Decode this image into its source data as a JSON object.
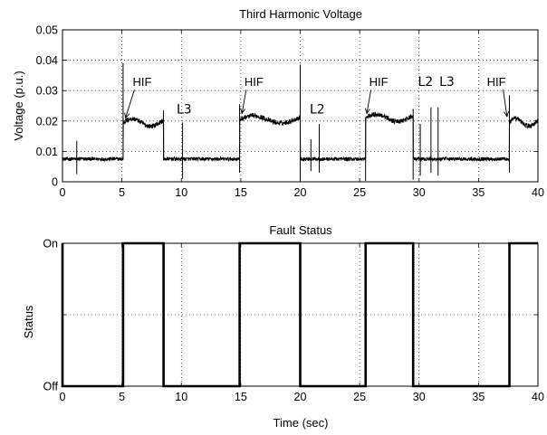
{
  "chart_data": [
    {
      "type": "line",
      "title": "Third Harmonic Voltage",
      "xlabel": "",
      "ylabel": "Voltage (p.u.)",
      "xlim": [
        0,
        40
      ],
      "ylim": [
        0,
        0.05
      ],
      "x_ticks": [
        "0",
        "5",
        "10",
        "15",
        "20",
        "25",
        "30",
        "35",
        "40"
      ],
      "y_ticks": [
        "0",
        "0.01",
        "0.02",
        "0.03",
        "0.04",
        "0.05"
      ],
      "grid": true,
      "segments": [
        {
          "x": [
            0,
            5.1
          ],
          "level": 0.0075,
          "state": "normal"
        },
        {
          "x": [
            5.1,
            8.5
          ],
          "level": 0.0195,
          "state": "HIF"
        },
        {
          "x": [
            8.5,
            14.9
          ],
          "level": 0.0075,
          "state": "normal"
        },
        {
          "x": [
            14.9,
            20.0
          ],
          "level": 0.0205,
          "state": "HIF"
        },
        {
          "x": [
            20.0,
            25.5
          ],
          "level": 0.0075,
          "state": "normal"
        },
        {
          "x": [
            25.5,
            29.5
          ],
          "level": 0.021,
          "state": "HIF"
        },
        {
          "x": [
            29.5,
            37.6
          ],
          "level": 0.0075,
          "state": "normal"
        },
        {
          "x": [
            37.6,
            40.0
          ],
          "level": 0.0195,
          "state": "HIF"
        }
      ],
      "spikes": [
        {
          "x": 1.2,
          "ymin": 0.0025,
          "ymax": 0.0135
        },
        {
          "x": 5.1,
          "ymin": 0.0075,
          "ymax": 0.039
        },
        {
          "x": 8.5,
          "ymin": 0.007,
          "ymax": 0.0235
        },
        {
          "x": 10.1,
          "ymin": 0.001,
          "ymax": 0.0195
        },
        {
          "x": 14.9,
          "ymin": 0.003,
          "ymax": 0.0255
        },
        {
          "x": 20.0,
          "ymin": 0.0005,
          "ymax": 0.0385
        },
        {
          "x": 20.9,
          "ymin": 0.0035,
          "ymax": 0.014
        },
        {
          "x": 21.6,
          "ymin": 0.003,
          "ymax": 0.019
        },
        {
          "x": 25.5,
          "ymin": 0.0003,
          "ymax": 0.021
        },
        {
          "x": 29.5,
          "ymin": 0.0007,
          "ymax": 0.024
        },
        {
          "x": 30.1,
          "ymin": 0.002,
          "ymax": 0.019
        },
        {
          "x": 31.0,
          "ymin": 0.003,
          "ymax": 0.0245
        },
        {
          "x": 31.6,
          "ymin": 0.002,
          "ymax": 0.0245
        },
        {
          "x": 37.6,
          "ymin": 0.003,
          "ymax": 0.0285
        }
      ],
      "annotations": [
        {
          "text": "HIF",
          "x": 5.9,
          "y": 0.0315,
          "arrow_to": [
            5.3,
            0.021
          ],
          "style": "normal"
        },
        {
          "text": "L3",
          "x": 9.6,
          "y": 0.0225,
          "style": "bold"
        },
        {
          "text": "HIF",
          "x": 15.3,
          "y": 0.0315,
          "arrow_to": [
            15.1,
            0.0225
          ],
          "style": "normal"
        },
        {
          "text": "L2",
          "x": 20.8,
          "y": 0.0225,
          "style": "bold"
        },
        {
          "text": "HIF",
          "x": 25.8,
          "y": 0.0315,
          "arrow_to": [
            25.6,
            0.0225
          ],
          "style": "normal"
        },
        {
          "text": "L2",
          "x": 29.9,
          "y": 0.0315,
          "style": "bold"
        },
        {
          "text": "L3",
          "x": 31.7,
          "y": 0.0315,
          "style": "bold"
        },
        {
          "text": "HIF",
          "x": 35.7,
          "y": 0.0315,
          "arrow_to": [
            37.4,
            0.0215
          ],
          "style": "normal"
        }
      ]
    },
    {
      "type": "line",
      "title": "Fault Status",
      "xlabel": "Time (sec)",
      "ylabel": "Status",
      "xlim": [
        0,
        40
      ],
      "ylim": [
        0,
        1
      ],
      "x_ticks": [
        "0",
        "5",
        "10",
        "15",
        "20",
        "25",
        "30",
        "35",
        "40"
      ],
      "y_ticks": [
        "Off",
        "On"
      ],
      "grid": true,
      "series": [
        {
          "x": [
            0,
            0,
            0.05,
            0.05,
            5.1,
            5.1,
            8.5,
            8.5,
            14.9,
            14.9,
            20.0,
            20.0,
            25.5,
            25.5,
            29.5,
            29.5,
            37.6,
            37.6,
            40
          ],
          "y": [
            1,
            0,
            0,
            0,
            0,
            1,
            1,
            0,
            0,
            1,
            1,
            0,
            0,
            1,
            1,
            0,
            0,
            1,
            1
          ]
        }
      ]
    }
  ]
}
